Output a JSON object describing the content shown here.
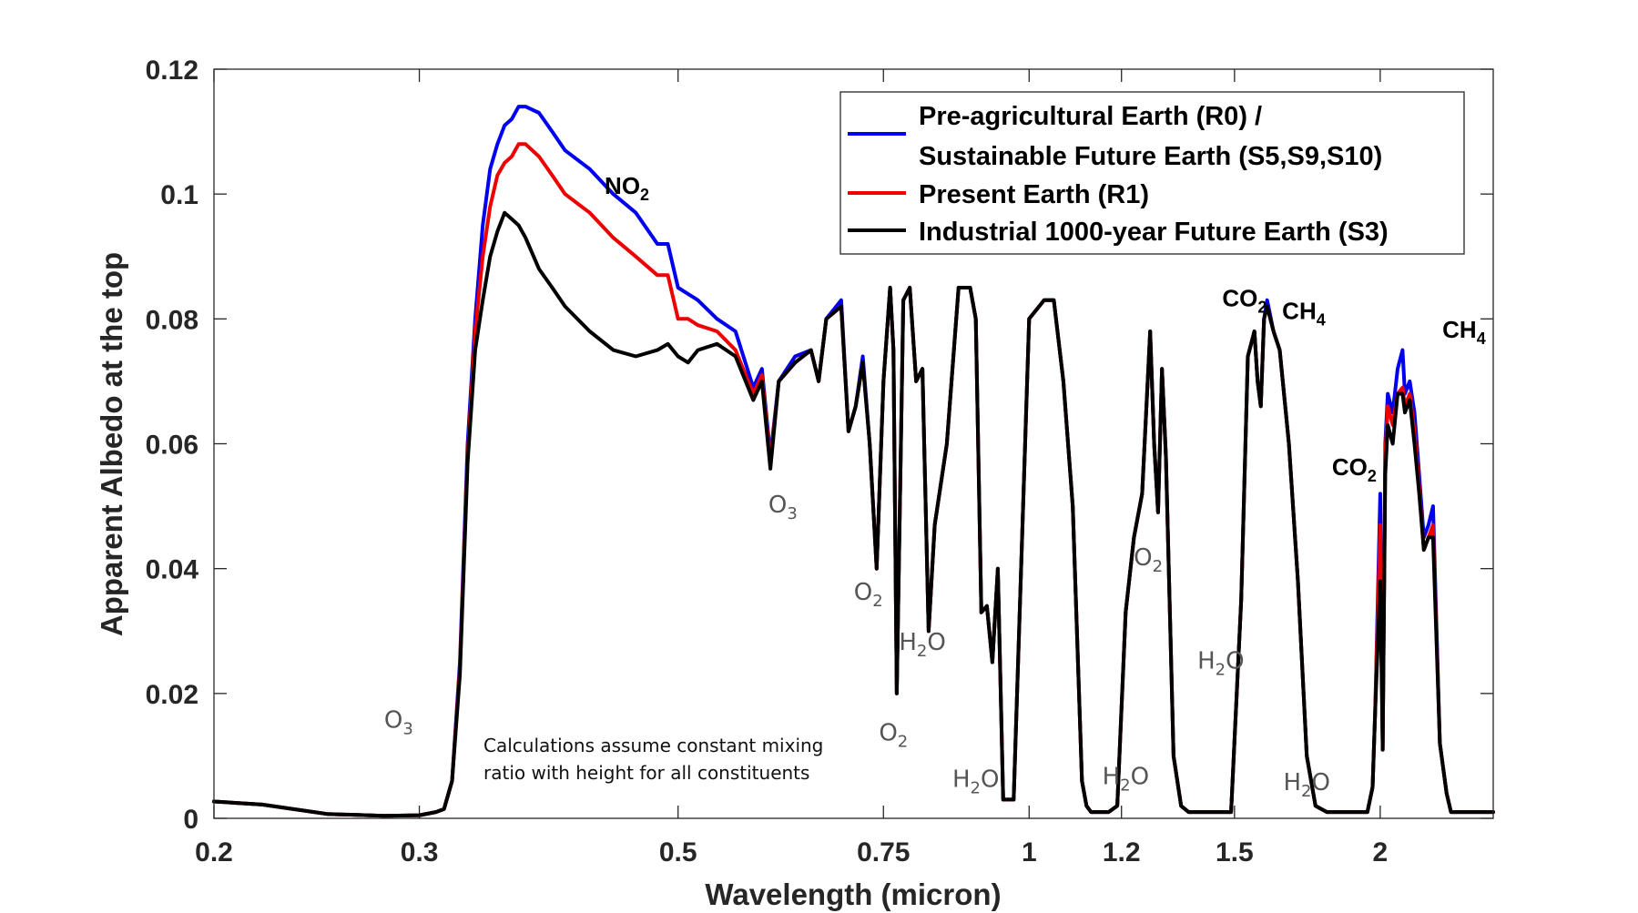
{
  "chart_data": {
    "type": "line",
    "xscale": "log",
    "xlabel": "Wavelength (micron)",
    "ylabel": "Apparent Albedo at the top",
    "xlim": [
      0.2,
      2.5
    ],
    "ylim": [
      0,
      0.12
    ],
    "xticks": [
      0.2,
      0.3,
      0.5,
      0.75,
      1,
      1.2,
      1.5,
      2
    ],
    "xtick_labels": [
      "0.2",
      "0.3",
      "0.5",
      "0.75",
      "1",
      "1.2",
      "1.5",
      "2"
    ],
    "yticks": [
      0,
      0.02,
      0.04,
      0.06,
      0.08,
      0.1,
      0.12
    ],
    "ytick_labels": [
      "0",
      "0.02",
      "0.04",
      "0.06",
      "0.08",
      "0.1",
      "0.12"
    ],
    "legend": {
      "placement": "top-right",
      "entries": [
        {
          "series": 0,
          "lines": [
            "Pre-agricultural Earth (R0) /",
            "Sustainable Future Earth (S5,S9,S10)"
          ]
        },
        {
          "series": 1,
          "lines": [
            "Present Earth (R1)"
          ]
        },
        {
          "series": 2,
          "lines": [
            "Industrial 1000-year Future Earth (S3)"
          ]
        }
      ]
    },
    "note": [
      "Calculations assume constant mixing",
      "ratio with height for all constituents"
    ],
    "series": [
      {
        "name": "Pre-agricultural Earth (R0) / Sustainable Future Earth (S5,S9,S10)",
        "color": "#0000ee",
        "x": [
          0.2,
          0.22,
          0.25,
          0.28,
          0.3,
          0.31,
          0.315,
          0.32,
          0.325,
          0.33,
          0.335,
          0.34,
          0.345,
          0.35,
          0.355,
          0.36,
          0.365,
          0.37,
          0.38,
          0.39,
          0.4,
          0.42,
          0.44,
          0.46,
          0.48,
          0.49,
          0.5,
          0.51,
          0.52,
          0.54,
          0.56,
          0.58,
          0.59,
          0.6,
          0.61,
          0.63,
          0.65,
          0.66,
          0.67,
          0.69,
          0.7,
          0.71,
          0.72,
          0.73,
          0.74,
          0.75,
          0.76,
          0.765,
          0.77,
          0.78,
          0.79,
          0.8,
          0.81,
          0.82,
          0.83,
          0.85,
          0.87,
          0.89,
          0.9,
          0.91,
          0.92,
          0.93,
          0.94,
          0.95,
          0.97,
          1.0,
          1.03,
          1.05,
          1.07,
          1.09,
          1.11,
          1.12,
          1.13,
          1.15,
          1.17,
          1.19,
          1.21,
          1.23,
          1.25,
          1.27,
          1.28,
          1.29,
          1.3,
          1.31,
          1.33,
          1.35,
          1.37,
          1.4,
          1.43,
          1.46,
          1.49,
          1.52,
          1.54,
          1.56,
          1.57,
          1.58,
          1.59,
          1.6,
          1.62,
          1.64,
          1.67,
          1.7,
          1.73,
          1.76,
          1.8,
          1.85,
          1.9,
          1.93,
          1.95,
          1.97,
          1.98,
          2.0,
          2.01,
          2.02,
          2.03,
          2.05,
          2.07,
          2.09,
          2.1,
          2.12,
          2.14,
          2.16,
          2.18,
          2.2,
          2.22,
          2.25,
          2.28,
          2.3,
          2.33,
          2.36,
          2.4,
          2.43,
          2.45,
          2.47,
          2.5
        ],
        "y": [
          0.0027,
          0.0022,
          0.0007,
          0.0004,
          0.0005,
          0.001,
          0.0015,
          0.006,
          0.025,
          0.06,
          0.08,
          0.095,
          0.104,
          0.108,
          0.111,
          0.112,
          0.114,
          0.114,
          0.113,
          0.11,
          0.107,
          0.104,
          0.1,
          0.097,
          0.092,
          0.092,
          0.085,
          0.084,
          0.083,
          0.08,
          0.078,
          0.069,
          0.072,
          0.058,
          0.07,
          0.074,
          0.075,
          0.07,
          0.08,
          0.083,
          0.062,
          0.066,
          0.074,
          0.06,
          0.04,
          0.07,
          0.085,
          0.075,
          0.02,
          0.083,
          0.085,
          0.07,
          0.072,
          0.03,
          0.047,
          0.06,
          0.085,
          0.085,
          0.08,
          0.033,
          0.034,
          0.025,
          0.04,
          0.003,
          0.003,
          0.08,
          0.083,
          0.083,
          0.07,
          0.05,
          0.006,
          0.002,
          0.001,
          0.001,
          0.001,
          0.002,
          0.033,
          0.045,
          0.052,
          0.078,
          0.06,
          0.049,
          0.072,
          0.058,
          0.01,
          0.002,
          0.001,
          0.001,
          0.001,
          0.001,
          0.001,
          0.035,
          0.074,
          0.078,
          0.07,
          0.066,
          0.08,
          0.083,
          0.078,
          0.075,
          0.06,
          0.038,
          0.01,
          0.002,
          0.001,
          0.001,
          0.001,
          0.001,
          0.001,
          0.005,
          0.017,
          0.052,
          0.011,
          0.06,
          0.068,
          0.065,
          0.072,
          0.075,
          0.068,
          0.07,
          0.065,
          0.055,
          0.045,
          0.047,
          0.05,
          0.012,
          0.004,
          0.001,
          0.001,
          0.001,
          0.001,
          0.001,
          0.001,
          0.001,
          0.001
        ]
      },
      {
        "name": "Present Earth (R1)",
        "color": "#ee0000",
        "x": [
          0.2,
          0.22,
          0.25,
          0.28,
          0.3,
          0.31,
          0.315,
          0.32,
          0.325,
          0.33,
          0.335,
          0.34,
          0.345,
          0.35,
          0.355,
          0.36,
          0.365,
          0.37,
          0.38,
          0.39,
          0.4,
          0.42,
          0.44,
          0.46,
          0.48,
          0.49,
          0.5,
          0.51,
          0.52,
          0.54,
          0.56,
          0.58,
          0.59,
          0.6,
          0.61,
          0.63,
          0.65,
          0.66,
          0.67,
          0.69,
          0.7,
          0.71,
          0.72,
          0.73,
          0.74,
          0.75,
          0.76,
          0.765,
          0.77,
          0.78,
          0.79,
          0.8,
          0.81,
          0.82,
          0.83,
          0.85,
          0.87,
          0.89,
          0.9,
          0.91,
          0.92,
          0.93,
          0.94,
          0.95,
          0.97,
          1.0,
          1.03,
          1.05,
          1.07,
          1.09,
          1.11,
          1.12,
          1.13,
          1.15,
          1.17,
          1.19,
          1.21,
          1.23,
          1.25,
          1.27,
          1.28,
          1.29,
          1.3,
          1.31,
          1.33,
          1.35,
          1.37,
          1.4,
          1.43,
          1.46,
          1.49,
          1.52,
          1.54,
          1.56,
          1.57,
          1.58,
          1.59,
          1.6,
          1.62,
          1.64,
          1.67,
          1.7,
          1.73,
          1.76,
          1.8,
          1.85,
          1.9,
          1.93,
          1.95,
          1.97,
          1.98,
          2.0,
          2.01,
          2.02,
          2.03,
          2.05,
          2.07,
          2.09,
          2.1,
          2.12,
          2.14,
          2.16,
          2.18,
          2.2,
          2.22,
          2.25,
          2.28,
          2.3,
          2.33,
          2.36,
          2.4,
          2.43,
          2.45,
          2.47,
          2.5
        ],
        "y": [
          0.0027,
          0.0022,
          0.0007,
          0.0004,
          0.0005,
          0.001,
          0.0015,
          0.006,
          0.024,
          0.058,
          0.078,
          0.09,
          0.098,
          0.103,
          0.105,
          0.106,
          0.108,
          0.108,
          0.106,
          0.103,
          0.1,
          0.097,
          0.093,
          0.09,
          0.087,
          0.087,
          0.08,
          0.08,
          0.079,
          0.078,
          0.075,
          0.068,
          0.071,
          0.057,
          0.07,
          0.073,
          0.075,
          0.07,
          0.08,
          0.082,
          0.062,
          0.066,
          0.073,
          0.06,
          0.04,
          0.07,
          0.085,
          0.075,
          0.02,
          0.083,
          0.085,
          0.07,
          0.072,
          0.03,
          0.047,
          0.06,
          0.085,
          0.085,
          0.08,
          0.033,
          0.034,
          0.025,
          0.04,
          0.003,
          0.003,
          0.08,
          0.083,
          0.083,
          0.07,
          0.05,
          0.006,
          0.002,
          0.001,
          0.001,
          0.001,
          0.002,
          0.033,
          0.045,
          0.052,
          0.078,
          0.06,
          0.049,
          0.072,
          0.058,
          0.01,
          0.002,
          0.001,
          0.001,
          0.001,
          0.001,
          0.001,
          0.035,
          0.074,
          0.078,
          0.07,
          0.066,
          0.08,
          0.082,
          0.078,
          0.075,
          0.06,
          0.038,
          0.01,
          0.002,
          0.001,
          0.001,
          0.001,
          0.001,
          0.001,
          0.005,
          0.017,
          0.047,
          0.011,
          0.058,
          0.066,
          0.063,
          0.068,
          0.069,
          0.066,
          0.068,
          0.062,
          0.053,
          0.043,
          0.045,
          0.047,
          0.012,
          0.004,
          0.001,
          0.001,
          0.001,
          0.001,
          0.001,
          0.001,
          0.001,
          0.001
        ]
      },
      {
        "name": "Industrial 1000-year Future Earth (S3)",
        "color": "#000000",
        "x": [
          0.2,
          0.22,
          0.25,
          0.28,
          0.3,
          0.31,
          0.315,
          0.32,
          0.325,
          0.33,
          0.335,
          0.34,
          0.345,
          0.35,
          0.355,
          0.36,
          0.365,
          0.37,
          0.38,
          0.39,
          0.4,
          0.42,
          0.44,
          0.46,
          0.48,
          0.49,
          0.5,
          0.51,
          0.52,
          0.54,
          0.56,
          0.58,
          0.59,
          0.6,
          0.61,
          0.63,
          0.65,
          0.66,
          0.67,
          0.69,
          0.7,
          0.71,
          0.72,
          0.73,
          0.74,
          0.75,
          0.76,
          0.765,
          0.77,
          0.78,
          0.79,
          0.8,
          0.81,
          0.82,
          0.83,
          0.85,
          0.87,
          0.89,
          0.9,
          0.91,
          0.92,
          0.93,
          0.94,
          0.95,
          0.97,
          1.0,
          1.03,
          1.05,
          1.07,
          1.09,
          1.11,
          1.12,
          1.13,
          1.15,
          1.17,
          1.19,
          1.21,
          1.23,
          1.25,
          1.27,
          1.28,
          1.29,
          1.3,
          1.31,
          1.33,
          1.35,
          1.37,
          1.4,
          1.43,
          1.46,
          1.49,
          1.52,
          1.54,
          1.56,
          1.57,
          1.58,
          1.59,
          1.6,
          1.62,
          1.64,
          1.67,
          1.7,
          1.73,
          1.76,
          1.8,
          1.85,
          1.9,
          1.93,
          1.95,
          1.97,
          1.98,
          2.0,
          2.01,
          2.02,
          2.03,
          2.05,
          2.07,
          2.09,
          2.1,
          2.12,
          2.14,
          2.16,
          2.18,
          2.2,
          2.22,
          2.25,
          2.28,
          2.3,
          2.33,
          2.36,
          2.4,
          2.43,
          2.45,
          2.47,
          2.5
        ],
        "y": [
          0.0027,
          0.0022,
          0.0007,
          0.0004,
          0.0005,
          0.001,
          0.0015,
          0.006,
          0.023,
          0.057,
          0.075,
          0.083,
          0.09,
          0.094,
          0.097,
          0.096,
          0.095,
          0.093,
          0.088,
          0.085,
          0.082,
          0.078,
          0.075,
          0.074,
          0.075,
          0.076,
          0.074,
          0.073,
          0.075,
          0.076,
          0.074,
          0.067,
          0.07,
          0.056,
          0.07,
          0.073,
          0.075,
          0.07,
          0.08,
          0.082,
          0.062,
          0.066,
          0.073,
          0.06,
          0.04,
          0.07,
          0.085,
          0.075,
          0.02,
          0.083,
          0.085,
          0.07,
          0.072,
          0.03,
          0.047,
          0.06,
          0.085,
          0.085,
          0.08,
          0.033,
          0.034,
          0.025,
          0.04,
          0.003,
          0.003,
          0.08,
          0.083,
          0.083,
          0.07,
          0.05,
          0.006,
          0.002,
          0.001,
          0.001,
          0.001,
          0.002,
          0.033,
          0.045,
          0.052,
          0.078,
          0.06,
          0.049,
          0.072,
          0.058,
          0.01,
          0.002,
          0.001,
          0.001,
          0.001,
          0.001,
          0.001,
          0.035,
          0.074,
          0.078,
          0.07,
          0.066,
          0.08,
          0.082,
          0.078,
          0.075,
          0.06,
          0.038,
          0.01,
          0.002,
          0.001,
          0.001,
          0.001,
          0.001,
          0.001,
          0.005,
          0.017,
          0.038,
          0.011,
          0.055,
          0.063,
          0.06,
          0.068,
          0.068,
          0.065,
          0.067,
          0.06,
          0.052,
          0.043,
          0.045,
          0.045,
          0.012,
          0.004,
          0.001,
          0.001,
          0.001,
          0.001,
          0.001,
          0.001,
          0.001,
          0.001
        ]
      }
    ],
    "annotations": [
      {
        "text": "NO",
        "sub": "2",
        "x": 0.452,
        "y": 0.1,
        "style": "bold"
      },
      {
        "text": "CO",
        "sub": "2",
        "x": 1.53,
        "y": 0.082,
        "style": "bold"
      },
      {
        "text": "CH",
        "sub": "4",
        "x": 1.72,
        "y": 0.08,
        "style": "bold"
      },
      {
        "text": "CO",
        "sub": "2",
        "x": 1.9,
        "y": 0.055,
        "style": "bold"
      },
      {
        "text": "CH",
        "sub": "4",
        "x": 2.36,
        "y": 0.077,
        "style": "bold"
      },
      {
        "text": "O",
        "sub": "3",
        "x": 0.288,
        "y": 0.0145,
        "style": "gray"
      },
      {
        "text": "O",
        "sub": "3",
        "x": 0.615,
        "y": 0.049,
        "style": "gray"
      },
      {
        "text": "O",
        "sub": "2",
        "x": 0.728,
        "y": 0.035,
        "style": "gray"
      },
      {
        "text": "O",
        "sub": "2",
        "x": 0.765,
        "y": 0.0125,
        "style": "gray"
      },
      {
        "text": "O",
        "sub": "2",
        "x": 1.265,
        "y": 0.0405,
        "style": "gray"
      },
      {
        "text": "H",
        "sub": "2",
        "tail": "O",
        "x": 0.81,
        "y": 0.027,
        "style": "gray"
      },
      {
        "text": "H",
        "sub": "2",
        "tail": "O",
        "x": 0.9,
        "y": 0.005,
        "style": "gray"
      },
      {
        "text": "H",
        "sub": "2",
        "tail": "O",
        "x": 1.21,
        "y": 0.0055,
        "style": "gray"
      },
      {
        "text": "H",
        "sub": "2",
        "tail": "O",
        "x": 1.46,
        "y": 0.024,
        "style": "gray"
      },
      {
        "text": "H",
        "sub": "2",
        "tail": "O",
        "x": 1.73,
        "y": 0.0045,
        "style": "gray"
      }
    ]
  }
}
